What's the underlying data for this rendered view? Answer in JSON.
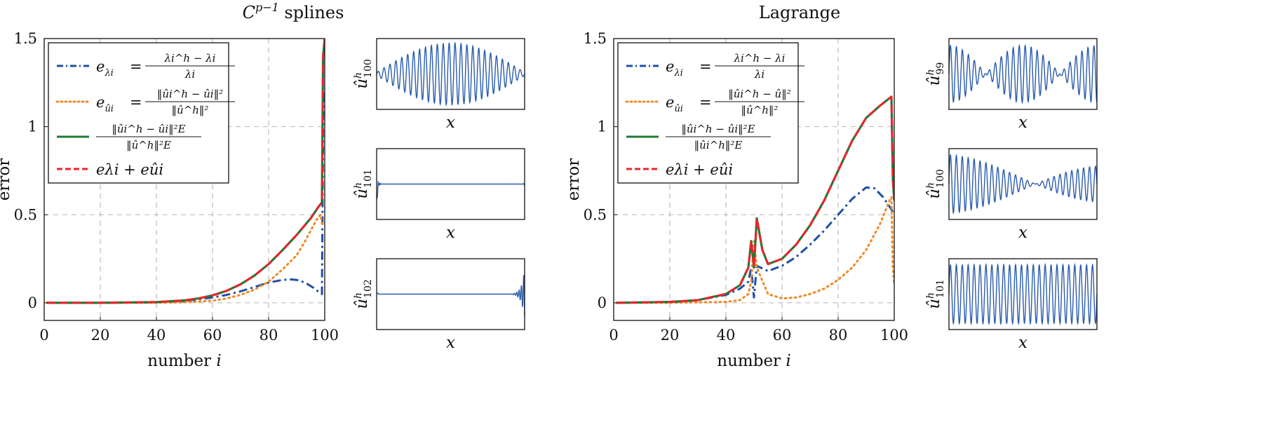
{
  "colors": {
    "blue": "#1f4fa8",
    "orange": "#ef8a2c",
    "green": "#1e7b35",
    "red": "#e8262b",
    "grid": "#b5b5b5",
    "thumb": "#2a5cad"
  },
  "panels": [
    {
      "title": "C^{p−1} splines",
      "title_base": "C",
      "title_sup": "p−1",
      "title_rest": " splines",
      "ylabel": "error",
      "xlabel": "number i",
      "xlabel_word": "number",
      "xlabel_var": "i",
      "legend": [
        {
          "label": "eλi = (λi^h − λi)/λi",
          "lhs": "e",
          "lhs_sub": "λi",
          "rel": "=",
          "num": "λi^h − λi",
          "den": "λi",
          "color": "blue",
          "dash": "dashdot"
        },
        {
          "label": "eûi = ‖ûi^h − ûi‖² / ‖û^h‖²",
          "lhs": "e",
          "lhs_sub": "ûi",
          "rel": "=",
          "num": "‖ûi^h − ûi‖²",
          "den": "‖û^h‖²",
          "color": "orange",
          "dash": "dotted"
        },
        {
          "label": "‖ûi^h − ûi‖²E / ‖û^h‖²E",
          "lhs": "",
          "lhs_sub": "",
          "rel": "",
          "num": "‖ûi^h − ûi‖²E",
          "den": "‖û^h‖²E",
          "color": "green",
          "dash": "solid"
        },
        {
          "label": "eλi + eûi",
          "plain": "eλi + eûi",
          "color": "red",
          "dash": "dashed"
        }
      ],
      "thumbs": [
        {
          "label": "û^h_100",
          "sub": "100",
          "xlabel": "x"
        },
        {
          "label": "û^h_101",
          "sub": "101",
          "xlabel": "x"
        },
        {
          "label": "û^h_102",
          "sub": "102",
          "xlabel": "x"
        }
      ]
    },
    {
      "title": "Lagrange",
      "title_base": "Lagrange",
      "title_sup": "",
      "title_rest": "",
      "ylabel": "error",
      "xlabel": "number i",
      "xlabel_word": "number",
      "xlabel_var": "i",
      "legend": [
        {
          "label": "eλi = (λi^h − λi)/λi",
          "lhs": "e",
          "lhs_sub": "λi",
          "rel": "=",
          "num": "λi^h − λi",
          "den": "λi",
          "color": "blue",
          "dash": "dashdot"
        },
        {
          "label": "eûi = ‖ûi^h − û‖² / ‖û^h‖²",
          "lhs": "e",
          "lhs_sub": "ûi",
          "rel": "=",
          "num": "‖ûi^h − û‖²",
          "den": "‖û^h‖²",
          "color": "orange",
          "dash": "dotted"
        },
        {
          "label": "‖ûi^h − ûi‖²E / ‖ûi^h‖²E",
          "lhs": "",
          "lhs_sub": "",
          "rel": "",
          "num": "‖ûi^h − ûi‖²E",
          "den": "‖ûi^h‖²E",
          "color": "green",
          "dash": "solid"
        },
        {
          "label": "eλi + eûi",
          "plain": "eλi + eûi",
          "color": "red",
          "dash": "dashed"
        }
      ],
      "thumbs": [
        {
          "label": "û^h_99",
          "sub": "99",
          "xlabel": "x"
        },
        {
          "label": "û^h_100",
          "sub": "100",
          "xlabel": "x"
        },
        {
          "label": "û^h_101",
          "sub": "101",
          "xlabel": "x"
        }
      ]
    }
  ],
  "chart_data": [
    {
      "type": "line",
      "title": "C^{p−1} splines",
      "xlabel": "number i",
      "ylabel": "error",
      "xlim": [
        0,
        100
      ],
      "ylim": [
        -0.1,
        1.5
      ],
      "xticks": [
        0,
        20,
        40,
        60,
        80,
        100
      ],
      "yticks": [
        0,
        0.5,
        1,
        1.5
      ],
      "ytick_labels": [
        "0",
        "0.5",
        "1",
        "1.5"
      ],
      "grid": true,
      "legend_position": "top-left",
      "series": [
        {
          "name": "eλi = (λi^h − λi)/λi",
          "color": "blue",
          "dash": "dashdot",
          "x": [
            1,
            20,
            40,
            50,
            60,
            65,
            70,
            75,
            80,
            85,
            88,
            90,
            93,
            96,
            98,
            99,
            99.5,
            100
          ],
          "y": [
            0,
            0,
            0.003,
            0.01,
            0.03,
            0.045,
            0.065,
            0.09,
            0.115,
            0.13,
            0.133,
            0.13,
            0.115,
            0.085,
            0.06,
            0.05,
            1.2,
            1.15
          ]
        },
        {
          "name": "eûi = ‖ûi^h − ûi‖² / ‖û^h‖²",
          "color": "orange",
          "dash": "dotted",
          "x": [
            1,
            20,
            40,
            50,
            60,
            65,
            70,
            75,
            80,
            85,
            90,
            93,
            95,
            97,
            98.5,
            99,
            100
          ],
          "y": [
            0,
            0,
            0,
            0.003,
            0.012,
            0.025,
            0.045,
            0.075,
            0.12,
            0.19,
            0.27,
            0.35,
            0.41,
            0.47,
            0.5,
            0.45,
            0.45
          ]
        },
        {
          "name": "‖ûi^h − ûi‖²E / ‖û^h‖²E",
          "color": "green",
          "dash": "solid",
          "x": [
            1,
            20,
            40,
            50,
            55,
            60,
            65,
            70,
            75,
            80,
            85,
            90,
            95,
            98,
            99,
            99.4,
            100
          ],
          "y": [
            0,
            0,
            0.004,
            0.014,
            0.025,
            0.042,
            0.068,
            0.105,
            0.155,
            0.22,
            0.3,
            0.385,
            0.48,
            0.55,
            0.57,
            1.4,
            1.5
          ]
        },
        {
          "name": "eλi + eûi",
          "color": "red",
          "dash": "dashed",
          "x": [
            1,
            20,
            40,
            50,
            55,
            60,
            65,
            70,
            75,
            80,
            85,
            90,
            95,
            98,
            99,
            99.4,
            100
          ],
          "y": [
            0,
            0,
            0.004,
            0.014,
            0.025,
            0.042,
            0.068,
            0.105,
            0.155,
            0.22,
            0.3,
            0.385,
            0.48,
            0.55,
            0.57,
            1.4,
            1.5
          ]
        }
      ]
    },
    {
      "type": "line",
      "title": "Lagrange",
      "xlabel": "number i",
      "ylabel": "error",
      "xlim": [
        0,
        100
      ],
      "ylim": [
        -0.1,
        1.5
      ],
      "xticks": [
        0,
        20,
        40,
        60,
        80,
        100
      ],
      "yticks": [
        0,
        0.5,
        1,
        1.5
      ],
      "ytick_labels": [
        "0",
        "0.5",
        "1",
        "1.5"
      ],
      "grid": true,
      "legend_position": "top-left",
      "series": [
        {
          "name": "eλi = (λi^h − λi)/λi",
          "color": "blue",
          "dash": "dashdot",
          "x": [
            1,
            20,
            30,
            40,
            45,
            48,
            49,
            50,
            51,
            55,
            60,
            65,
            70,
            75,
            80,
            85,
            90,
            93,
            96,
            99,
            100
          ],
          "y": [
            0,
            0.005,
            0.015,
            0.045,
            0.08,
            0.12,
            0.2,
            0.03,
            0.21,
            0.18,
            0.21,
            0.26,
            0.33,
            0.41,
            0.5,
            0.59,
            0.655,
            0.65,
            0.6,
            0.53,
            0.5
          ]
        },
        {
          "name": "eûi = ‖ûi^h − û‖² / ‖û^h‖²",
          "color": "orange",
          "dash": "dotted",
          "x": [
            1,
            20,
            40,
            45,
            48,
            49,
            50,
            51,
            55,
            60,
            65,
            70,
            75,
            80,
            85,
            90,
            95,
            98,
            99,
            99.5,
            100
          ],
          "y": [
            0,
            0,
            0.005,
            0.015,
            0.05,
            0.12,
            0.35,
            0.2,
            0.05,
            0.025,
            0.03,
            0.05,
            0.08,
            0.13,
            0.2,
            0.3,
            0.45,
            0.57,
            0.6,
            0.2,
            0.1
          ]
        },
        {
          "name": "‖ûi^h − ûi‖²E / ‖ûi^h‖²E",
          "color": "green",
          "dash": "solid",
          "x": [
            1,
            20,
            30,
            40,
            45,
            48,
            49,
            50,
            51,
            53,
            55,
            60,
            65,
            70,
            75,
            80,
            85,
            90,
            95,
            99,
            99.5,
            100
          ],
          "y": [
            0,
            0.005,
            0.015,
            0.05,
            0.1,
            0.2,
            0.35,
            0.2,
            0.48,
            0.3,
            0.22,
            0.25,
            0.33,
            0.44,
            0.58,
            0.75,
            0.92,
            1.05,
            1.12,
            1.17,
            0.7,
            0.58
          ]
        },
        {
          "name": "eλi + eûi",
          "color": "red",
          "dash": "dashed",
          "x": [
            1,
            20,
            30,
            40,
            45,
            48,
            49,
            50,
            51,
            53,
            55,
            60,
            65,
            70,
            75,
            80,
            85,
            90,
            95,
            99,
            99.5,
            100
          ],
          "y": [
            0,
            0.005,
            0.015,
            0.05,
            0.1,
            0.2,
            0.35,
            0.2,
            0.48,
            0.3,
            0.22,
            0.25,
            0.33,
            0.44,
            0.58,
            0.75,
            0.92,
            1.05,
            1.12,
            1.17,
            0.7,
            0.58
          ]
        }
      ]
    }
  ]
}
